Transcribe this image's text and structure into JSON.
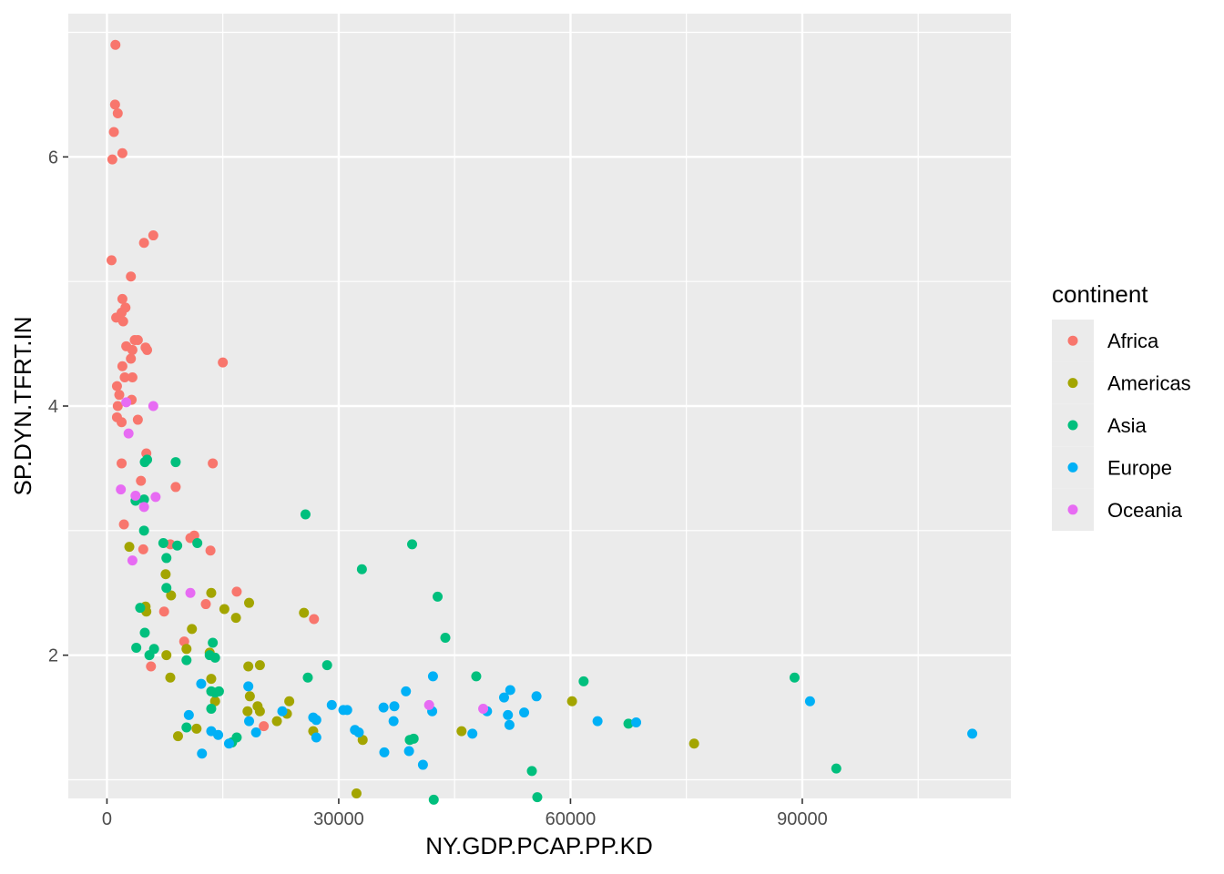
{
  "chart_data": {
    "type": "scatter",
    "xlabel": "NY.GDP.PCAP.PP.KD",
    "ylabel": "SP.DYN.TFRT.IN",
    "xlim": [
      -5000,
      117000
    ],
    "ylim": [
      0.85,
      7.15
    ],
    "x_ticks": [
      0,
      30000,
      60000,
      90000
    ],
    "x_tick_labels": [
      "0",
      "30000",
      "60000",
      "90000"
    ],
    "y_ticks": [
      2,
      4,
      6
    ],
    "y_tick_labels": [
      "2",
      "4",
      "6"
    ],
    "grid": true,
    "legend": {
      "title": "continent",
      "position": "right"
    },
    "series": [
      {
        "name": "Africa",
        "color": "#F8766D",
        "points": [
          [
            1100,
            6.9
          ],
          [
            1050,
            6.42
          ],
          [
            1400,
            6.35
          ],
          [
            900,
            6.2
          ],
          [
            2000,
            6.03
          ],
          [
            700,
            5.98
          ],
          [
            6000,
            5.37
          ],
          [
            4800,
            5.31
          ],
          [
            600,
            5.17
          ],
          [
            3100,
            5.04
          ],
          [
            2000,
            4.86
          ],
          [
            2400,
            4.79
          ],
          [
            1900,
            4.75
          ],
          [
            1200,
            4.71
          ],
          [
            2100,
            4.68
          ],
          [
            3600,
            4.53
          ],
          [
            4000,
            4.53
          ],
          [
            2500,
            4.48
          ],
          [
            5000,
            4.47
          ],
          [
            5200,
            4.45
          ],
          [
            3300,
            4.45
          ],
          [
            3100,
            4.38
          ],
          [
            15000,
            4.35
          ],
          [
            2000,
            4.32
          ],
          [
            3300,
            4.23
          ],
          [
            2300,
            4.23
          ],
          [
            1300,
            4.16
          ],
          [
            1600,
            4.09
          ],
          [
            3200,
            4.05
          ],
          [
            1400,
            4.0
          ],
          [
            1300,
            3.91
          ],
          [
            4000,
            3.89
          ],
          [
            1900,
            3.87
          ],
          [
            5100,
            3.62
          ],
          [
            1900,
            3.54
          ],
          [
            13700,
            3.54
          ],
          [
            4400,
            3.4
          ],
          [
            8900,
            3.35
          ],
          [
            2200,
            3.05
          ],
          [
            11300,
            2.96
          ],
          [
            10800,
            2.94
          ],
          [
            8200,
            2.89
          ],
          [
            4700,
            2.85
          ],
          [
            13400,
            2.84
          ],
          [
            16800,
            2.51
          ],
          [
            12800,
            2.41
          ],
          [
            7400,
            2.35
          ],
          [
            26800,
            2.29
          ],
          [
            10000,
            2.11
          ],
          [
            5700,
            1.91
          ],
          [
            20300,
            1.43
          ]
        ]
      },
      {
        "name": "Americas",
        "color": "#A3A500",
        "points": [
          [
            2900,
            2.87
          ],
          [
            7600,
            2.65
          ],
          [
            13500,
            2.5
          ],
          [
            8300,
            2.48
          ],
          [
            18400,
            2.42
          ],
          [
            5000,
            2.39
          ],
          [
            15200,
            2.37
          ],
          [
            5100,
            2.35
          ],
          [
            25500,
            2.34
          ],
          [
            16700,
            2.3
          ],
          [
            11000,
            2.21
          ],
          [
            10300,
            2.05
          ],
          [
            7700,
            2.0
          ],
          [
            13300,
            2.02
          ],
          [
            18300,
            1.91
          ],
          [
            19800,
            1.92
          ],
          [
            8200,
            1.82
          ],
          [
            13500,
            1.81
          ],
          [
            18500,
            1.67
          ],
          [
            23600,
            1.63
          ],
          [
            14000,
            1.63
          ],
          [
            60200,
            1.63
          ],
          [
            18200,
            1.55
          ],
          [
            19500,
            1.59
          ],
          [
            19800,
            1.55
          ],
          [
            23300,
            1.53
          ],
          [
            22000,
            1.47
          ],
          [
            11600,
            1.41
          ],
          [
            26700,
            1.39
          ],
          [
            45900,
            1.39
          ],
          [
            9200,
            1.35
          ],
          [
            33100,
            1.32
          ],
          [
            76000,
            1.29
          ],
          [
            32300,
            0.89
          ]
        ]
      },
      {
        "name": "Asia",
        "color": "#00BF7D",
        "points": [
          [
            8900,
            3.55
          ],
          [
            5200,
            3.57
          ],
          [
            4900,
            3.55
          ],
          [
            3700,
            3.24
          ],
          [
            4800,
            3.25
          ],
          [
            25700,
            3.13
          ],
          [
            4800,
            3.0
          ],
          [
            7300,
            2.9
          ],
          [
            11700,
            2.9
          ],
          [
            9100,
            2.88
          ],
          [
            39500,
            2.89
          ],
          [
            7700,
            2.78
          ],
          [
            33000,
            2.69
          ],
          [
            7700,
            2.54
          ],
          [
            42800,
            2.47
          ],
          [
            4300,
            2.38
          ],
          [
            4900,
            2.18
          ],
          [
            43800,
            2.14
          ],
          [
            13700,
            2.1
          ],
          [
            3800,
            2.06
          ],
          [
            6100,
            2.05
          ],
          [
            13300,
            2.0
          ],
          [
            5500,
            2.0
          ],
          [
            14000,
            1.98
          ],
          [
            10300,
            1.96
          ],
          [
            28500,
            1.92
          ],
          [
            89000,
            1.82
          ],
          [
            47800,
            1.83
          ],
          [
            26000,
            1.82
          ],
          [
            61700,
            1.79
          ],
          [
            13500,
            1.71
          ],
          [
            14500,
            1.71
          ],
          [
            14000,
            1.7
          ],
          [
            13500,
            1.57
          ],
          [
            67500,
            1.45
          ],
          [
            10300,
            1.42
          ],
          [
            16800,
            1.34
          ],
          [
            16200,
            1.3
          ],
          [
            39700,
            1.33
          ],
          [
            39200,
            1.32
          ],
          [
            55000,
            1.07
          ],
          [
            94400,
            1.09
          ],
          [
            55700,
            0.86
          ],
          [
            42300,
            0.84
          ]
        ]
      },
      {
        "name": "Europe",
        "color": "#00B0F6",
        "points": [
          [
            42200,
            1.83
          ],
          [
            18300,
            1.75
          ],
          [
            12200,
            1.77
          ],
          [
            52200,
            1.72
          ],
          [
            38700,
            1.71
          ],
          [
            55600,
            1.67
          ],
          [
            51400,
            1.66
          ],
          [
            91000,
            1.63
          ],
          [
            29100,
            1.6
          ],
          [
            35800,
            1.58
          ],
          [
            37200,
            1.59
          ],
          [
            30600,
            1.56
          ],
          [
            31100,
            1.56
          ],
          [
            42100,
            1.55
          ],
          [
            49200,
            1.55
          ],
          [
            54000,
            1.54
          ],
          [
            51900,
            1.52
          ],
          [
            22700,
            1.55
          ],
          [
            10600,
            1.52
          ],
          [
            26700,
            1.5
          ],
          [
            27100,
            1.48
          ],
          [
            18400,
            1.47
          ],
          [
            37100,
            1.47
          ],
          [
            63500,
            1.47
          ],
          [
            68500,
            1.46
          ],
          [
            52100,
            1.44
          ],
          [
            32100,
            1.4
          ],
          [
            32600,
            1.38
          ],
          [
            19300,
            1.38
          ],
          [
            47300,
            1.37
          ],
          [
            13500,
            1.39
          ],
          [
            14400,
            1.36
          ],
          [
            27100,
            1.34
          ],
          [
            112000,
            1.37
          ],
          [
            15800,
            1.29
          ],
          [
            35900,
            1.22
          ],
          [
            39100,
            1.23
          ],
          [
            12300,
            1.21
          ],
          [
            40900,
            1.12
          ]
        ]
      },
      {
        "name": "Oceania",
        "color": "#E76BF3",
        "points": [
          [
            2500,
            4.03
          ],
          [
            6000,
            4.0
          ],
          [
            2800,
            3.78
          ],
          [
            1800,
            3.33
          ],
          [
            3700,
            3.28
          ],
          [
            6300,
            3.27
          ],
          [
            4800,
            3.19
          ],
          [
            3300,
            2.76
          ],
          [
            10800,
            2.5
          ],
          [
            41700,
            1.6
          ],
          [
            48700,
            1.57
          ]
        ]
      }
    ]
  }
}
